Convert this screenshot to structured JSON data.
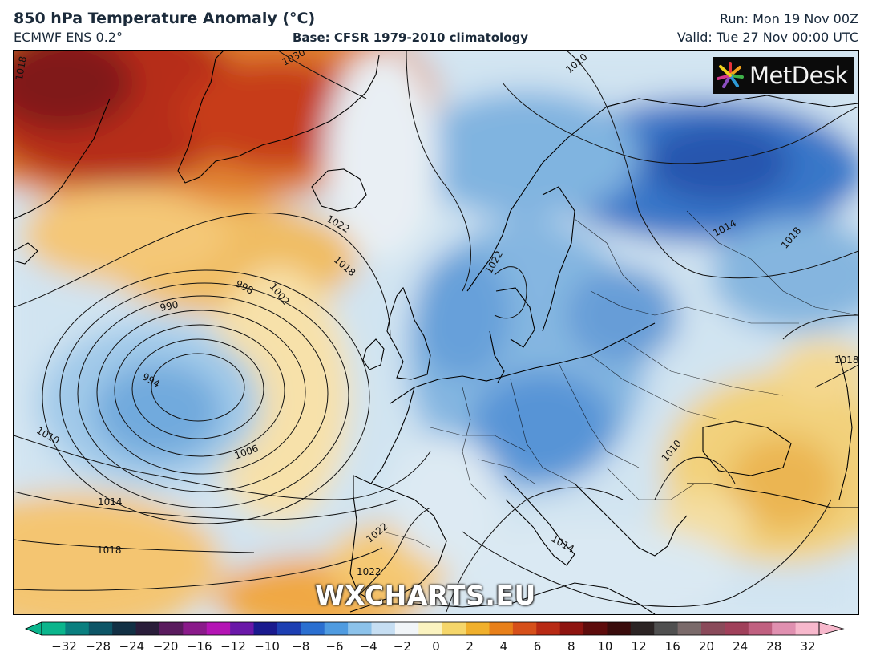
{
  "header": {
    "title": "850 hPa Temperature Anomaly (°C)",
    "model": "ECMWF ENS 0.2°",
    "base": "Base: CFSR 1979-2010 climatology",
    "run": "Run: Mon 19 Nov 00Z",
    "valid": "Valid: Tue 27 Nov 00:00 UTC"
  },
  "brand": {
    "logo_text": "MetDesk",
    "watermark": "WXCHARTS.EU"
  },
  "isobar_labels": [
    {
      "text": "1030"
    },
    {
      "text": "1018"
    },
    {
      "text": "1010"
    },
    {
      "text": "1022"
    },
    {
      "text": "1018"
    },
    {
      "text": "998"
    },
    {
      "text": "1002"
    },
    {
      "text": "990"
    },
    {
      "text": "994"
    },
    {
      "text": "1006"
    },
    {
      "text": "1010"
    },
    {
      "text": "1014"
    },
    {
      "text": "1018"
    },
    {
      "text": "1022"
    },
    {
      "text": "1022"
    },
    {
      "text": "1014"
    },
    {
      "text": "1018"
    },
    {
      "text": "1018"
    },
    {
      "text": "1010"
    },
    {
      "text": "1014"
    },
    {
      "text": "1022"
    }
  ],
  "colorbar": {
    "ticks": [
      "−32",
      "−28",
      "−24",
      "−20",
      "−16",
      "−12",
      "−10",
      "−8",
      "−6",
      "−4",
      "−2",
      "0",
      "2",
      "4",
      "6",
      "8",
      "10",
      "12",
      "16",
      "20",
      "24",
      "28",
      "32"
    ],
    "colors": [
      "#0bb58c",
      "#0a7f7f",
      "#0d5566",
      "#123044",
      "#2a1d3a",
      "#5a1b5e",
      "#8a1a8a",
      "#b414b4",
      "#6a18a8",
      "#1a1a8e",
      "#1d3fb2",
      "#2b6fd0",
      "#4f9be0",
      "#8cc2ea",
      "#c6def2",
      "#f1f5f8",
      "#fbf3c0",
      "#f5d66a",
      "#f0b02c",
      "#e8801a",
      "#d6501a",
      "#b82a14",
      "#8e1410",
      "#5e0c0c",
      "#3a0c0c",
      "#2c2424",
      "#505050",
      "#7a6a6a",
      "#8a4a5a",
      "#a0405a",
      "#c06080",
      "#e090b0",
      "#f7b8cc"
    ]
  }
}
